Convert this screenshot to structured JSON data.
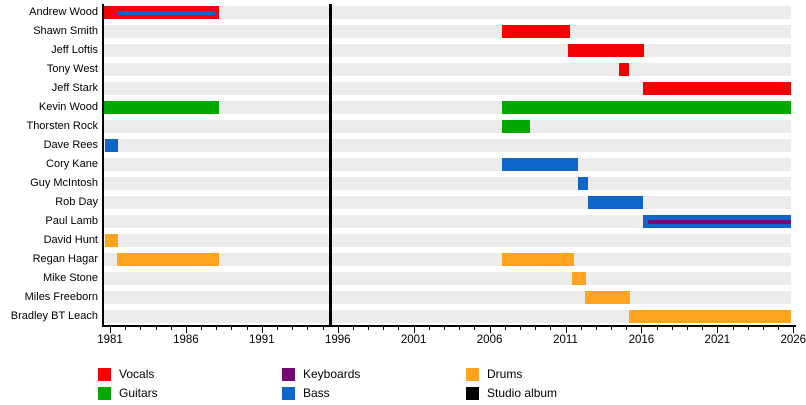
{
  "chart_data": {
    "type": "timeline",
    "orientation": "horizontal-gantt",
    "axis": {
      "start": 1980.54,
      "end": 2025.85,
      "tick_start": 1981,
      "tick_end": 2026,
      "minor_step": 1,
      "major_step": 5,
      "tick_labels": [
        "1981",
        "1986",
        "1991",
        "1996",
        "2001",
        "2006",
        "2011",
        "2016",
        "2021",
        "2026"
      ]
    },
    "colors": {
      "vocals": "#f40000",
      "guitars": "#00a800",
      "keyboards": "#760876",
      "bass": "#0f66c8",
      "drums": "#ffa41e",
      "studio_album": "#000000",
      "row_track": "#ececec"
    },
    "studio_albums": [
      1995.55
    ],
    "members": [
      {
        "name": "Andrew Wood",
        "bars": [
          {
            "role": "vocals",
            "start": 1980.54,
            "end": 1988.15,
            "stripes": [
              {
                "role": "bass",
                "start": 1981.5,
                "end": 1987.95
              }
            ]
          }
        ]
      },
      {
        "name": "Shawn Smith",
        "bars": [
          {
            "role": "vocals",
            "start": 2006.8,
            "end": 2011.3
          }
        ]
      },
      {
        "name": "Jeff Loftis",
        "bars": [
          {
            "role": "vocals",
            "start": 2011.15,
            "end": 2016.2
          }
        ]
      },
      {
        "name": "Tony West",
        "bars": [
          {
            "role": "vocals",
            "start": 2014.55,
            "end": 2015.2
          }
        ]
      },
      {
        "name": "Jeff Stark",
        "bars": [
          {
            "role": "vocals",
            "start": 2016.1,
            "end": 2025.85
          }
        ]
      },
      {
        "name": "Kevin Wood",
        "bars": [
          {
            "role": "guitars",
            "start": 1980.54,
            "end": 1988.15
          },
          {
            "role": "guitars",
            "start": 2006.85,
            "end": 2025.85
          }
        ]
      },
      {
        "name": "Thorsten Rock",
        "bars": [
          {
            "role": "guitars",
            "start": 2006.85,
            "end": 2008.65
          }
        ]
      },
      {
        "name": "Dave Rees",
        "bars": [
          {
            "role": "bass",
            "start": 1980.7,
            "end": 1981.55
          }
        ]
      },
      {
        "name": "Cory Kane",
        "bars": [
          {
            "role": "bass",
            "start": 2006.8,
            "end": 2011.85
          }
        ]
      },
      {
        "name": "Guy McIntosh",
        "bars": [
          {
            "role": "bass",
            "start": 2011.85,
            "end": 2012.5
          }
        ]
      },
      {
        "name": "Rob Day",
        "bars": [
          {
            "role": "bass",
            "start": 2012.45,
            "end": 2016.1
          }
        ]
      },
      {
        "name": "Paul Lamb",
        "bars": [
          {
            "role": "bass",
            "start": 2016.1,
            "end": 2025.85,
            "stripes": [
              {
                "role": "keyboards",
                "start": 2016.4,
                "end": 2025.85
              }
            ]
          }
        ]
      },
      {
        "name": "David Hunt",
        "bars": [
          {
            "role": "drums",
            "start": 1980.7,
            "end": 1981.55
          }
        ]
      },
      {
        "name": "Regan Hagar",
        "bars": [
          {
            "role": "drums",
            "start": 1981.45,
            "end": 1988.15
          },
          {
            "role": "drums",
            "start": 2006.85,
            "end": 2011.55
          }
        ]
      },
      {
        "name": "Mike Stone",
        "bars": [
          {
            "role": "drums",
            "start": 2011.45,
            "end": 2012.35
          }
        ]
      },
      {
        "name": "Miles Freeborn",
        "bars": [
          {
            "role": "drums",
            "start": 2012.3,
            "end": 2015.25
          }
        ]
      },
      {
        "name": "Bradley BT Leach",
        "bars": [
          {
            "role": "drums",
            "start": 2015.15,
            "end": 2025.85
          }
        ]
      }
    ],
    "legend": [
      {
        "role": "vocals",
        "label": "Vocals"
      },
      {
        "role": "guitars",
        "label": "Guitars"
      },
      {
        "role": "keyboards",
        "label": "Keyboards"
      },
      {
        "role": "bass",
        "label": "Bass"
      },
      {
        "role": "drums",
        "label": "Drums"
      },
      {
        "role": "studio_album",
        "label": "Studio album"
      }
    ]
  }
}
